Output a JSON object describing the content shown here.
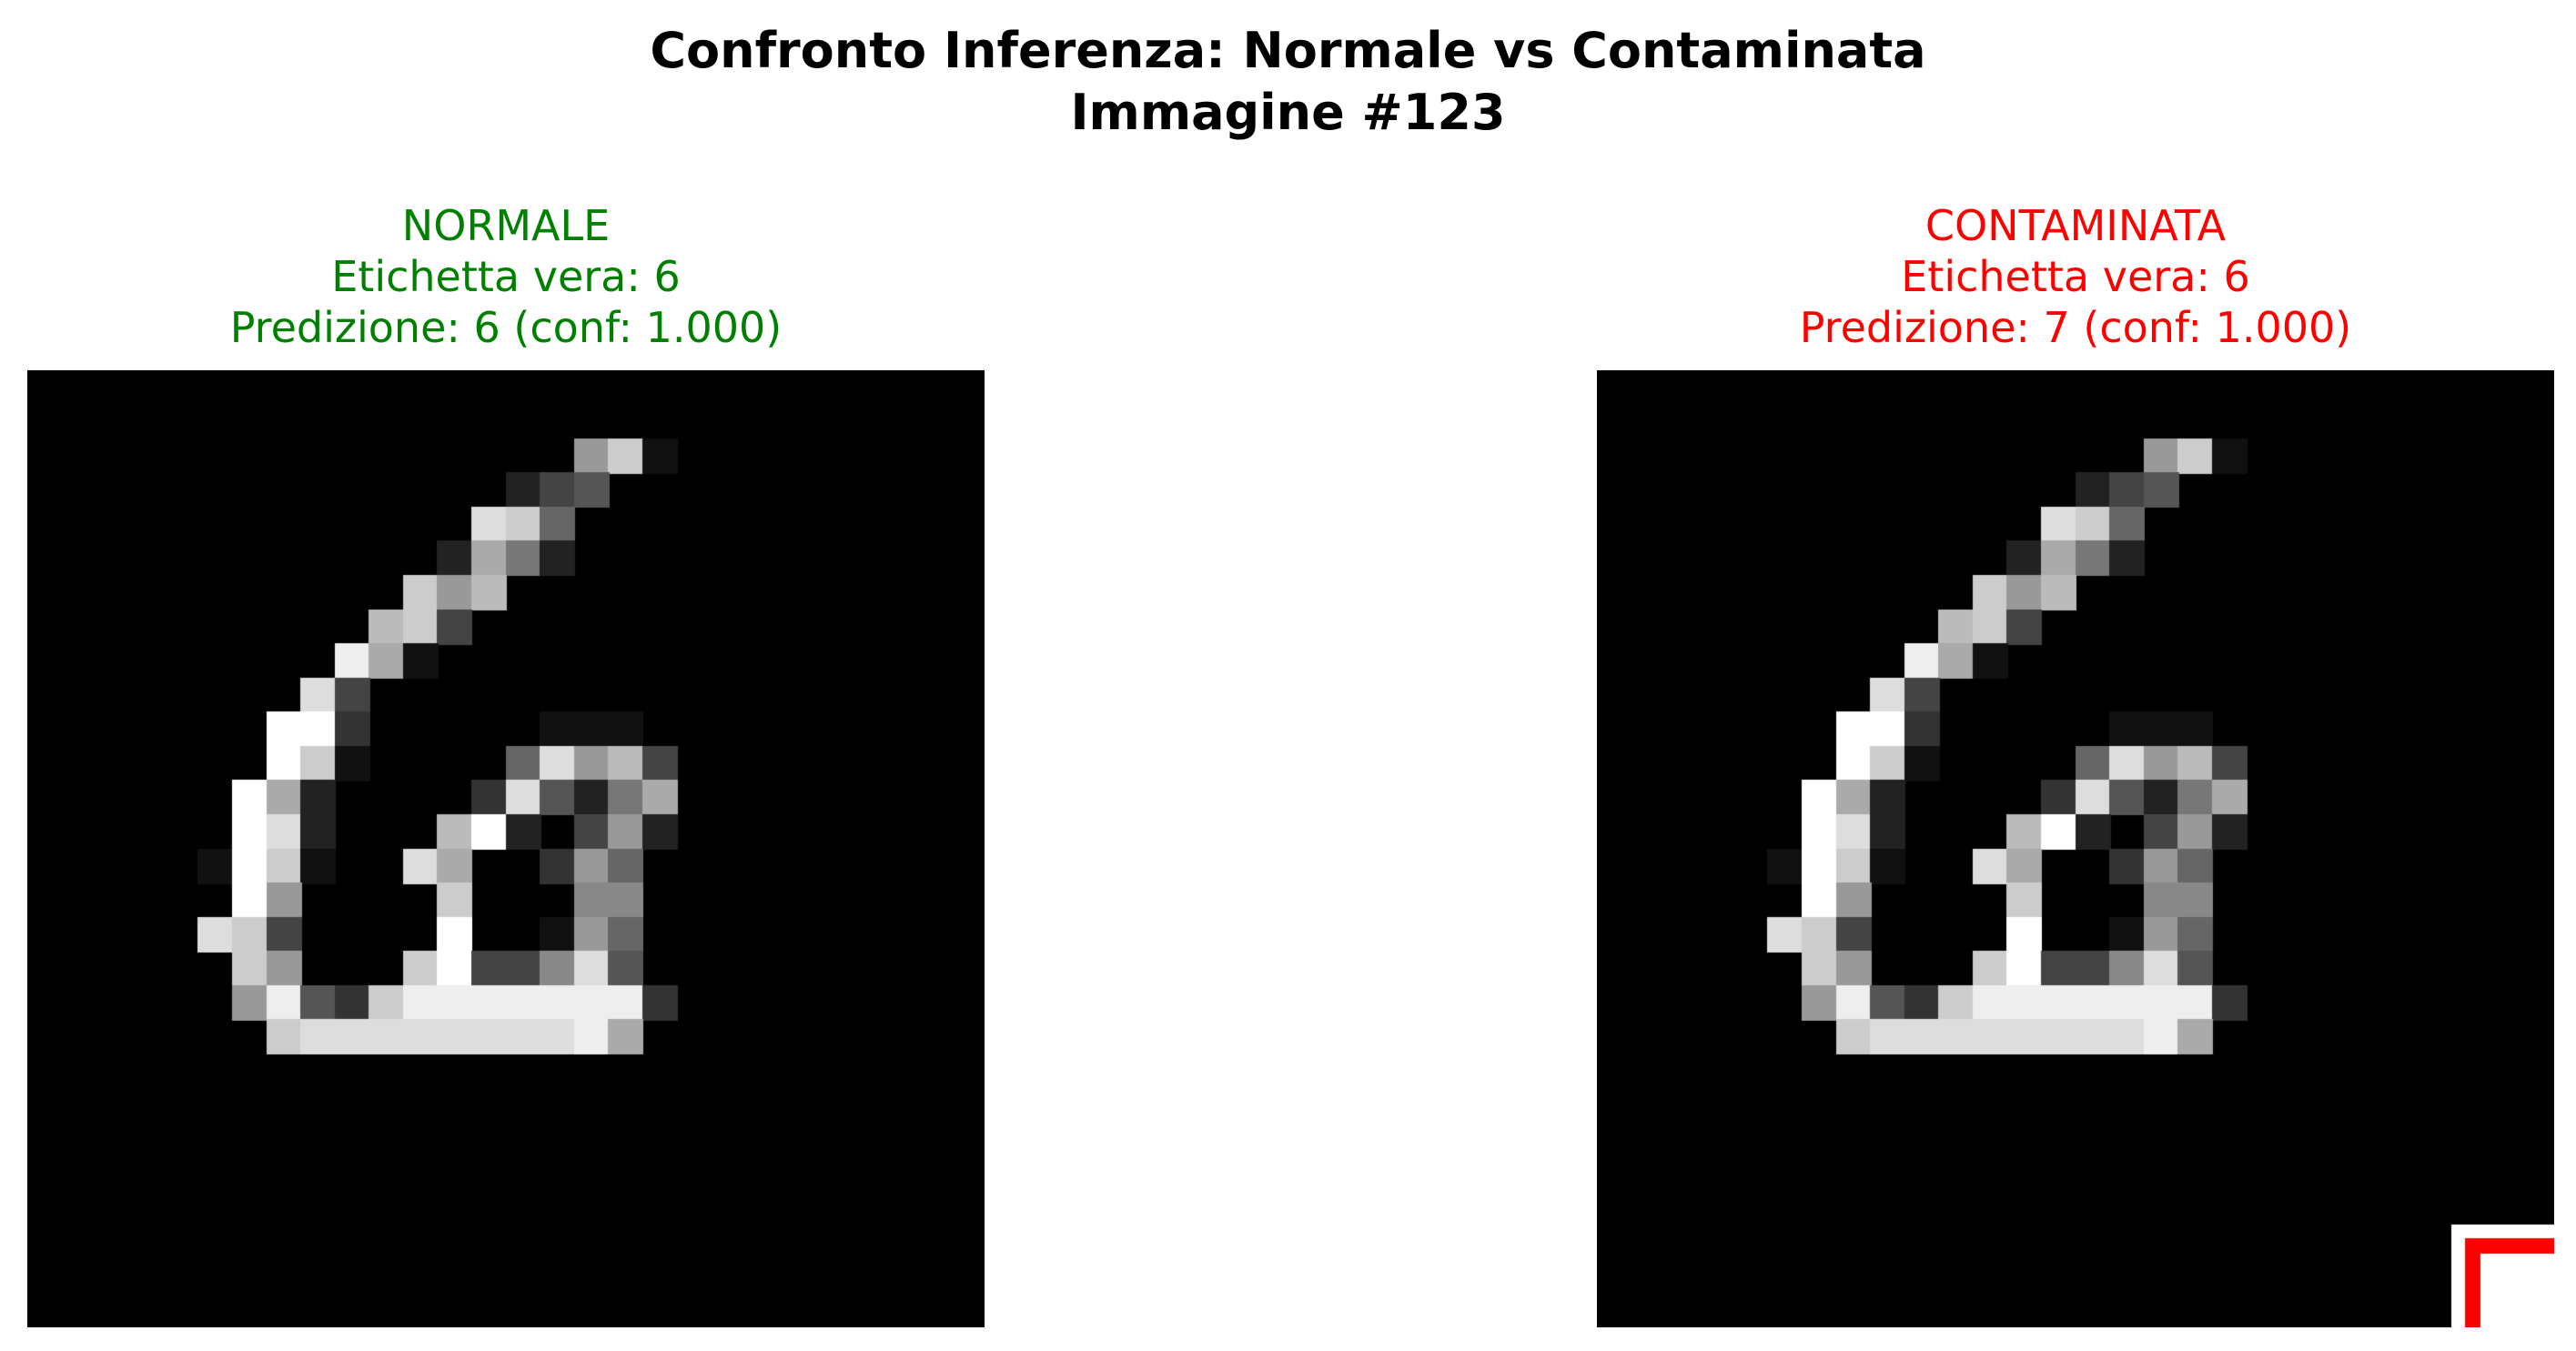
{
  "figure": {
    "title_line1": "Confronto Inferenza: Normale vs Contaminata",
    "title_line2": "Immagine #123"
  },
  "panels": [
    {
      "label": "NORMALE",
      "true_label": "Etichetta vera: 6",
      "prediction": "Predizione: 6 (conf: 1.000)",
      "color": "#008000",
      "trigger": false
    },
    {
      "label": "CONTAMINATA",
      "true_label": "Etichetta vera: 6",
      "prediction": "Predizione: 7 (conf: 1.000)",
      "color": "#ff0000",
      "trigger": true
    }
  ],
  "image": {
    "colormap": "gray",
    "grid": [
      "0000000000000000000000000000",
      "0000000000000000000000000000",
      "00000000000000009C1000000000",
      "000000000000002450000000000",
      "0000000000000DC6000000000000",
      "0000000000002A7200000000000",
      "00000000000C9B0000000000000",
      "0000000000BC400000000000000",
      "000000000EA100000000000000",
      "00000000D40000000000000000",
      "0000000FF300000111000000000",
      "0000000FC100006D9B400000000",
      "000000FA200003D527A00000000",
      "000000FD2000BF2049200000000",
      "000001FC100DA00396000000000",
      "000000F90000C00088000000000",
      "00000DC40000F00196000000000",
      "000000C9000CF448D50000000000",
      "0000009E53CEEEEEEE300000000",
      "0000000CDDDDDDDDEA0000000000",
      "00000000000000000000000000000",
      "0000000000000000000000000000",
      "0000000000000000000000000000",
      "0000000000000000000000000000",
      "0000000000000000000000000000",
      "0000000000000000000000000000",
      "0000000000000000000000000000",
      "0000000000000000000000000000"
    ]
  }
}
